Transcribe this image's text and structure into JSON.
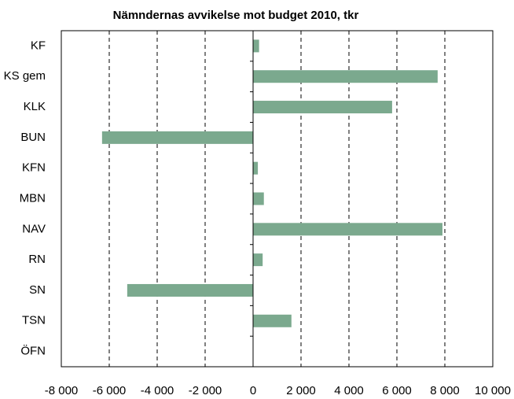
{
  "chart_data": {
    "type": "bar",
    "orientation": "horizontal",
    "title": "Nämndernas avvikelse mot budget 2010, tkr",
    "categories": [
      "KF",
      "KS gem",
      "KLK",
      "BUN",
      "KFN",
      "MBN",
      "NAV",
      "RN",
      "SN",
      "TSN",
      "ÖFN"
    ],
    "values": [
      250,
      7700,
      5800,
      -6300,
      200,
      450,
      7900,
      400,
      -5250,
      1600,
      0
    ],
    "color": "#7ba98e",
    "xlim": [
      -8000,
      10000
    ],
    "xticks": [
      {
        "value": -8000,
        "label": "-8 000"
      },
      {
        "value": -6000,
        "label": "-6 000"
      },
      {
        "value": -4000,
        "label": "-4 000"
      },
      {
        "value": -2000,
        "label": "-2 000"
      },
      0,
      {
        "value": 2000,
        "label": "2 000"
      },
      {
        "value": 4000,
        "label": "4 000"
      },
      {
        "value": 6000,
        "label": "6 000"
      },
      {
        "value": 8000,
        "label": "8 000"
      },
      {
        "value": 10000,
        "label": "10 000"
      }
    ],
    "grid": true
  }
}
